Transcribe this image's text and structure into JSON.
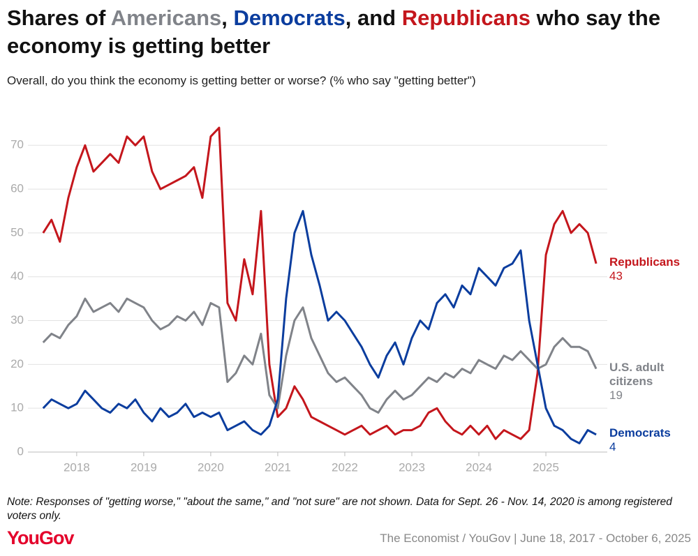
{
  "title": [
    {
      "text": "Shares of "
    },
    {
      "text": "Americans",
      "color": "#808389"
    },
    {
      "text": ", "
    },
    {
      "text": "Democrats",
      "color": "#0b3d9e"
    },
    {
      "text": ", and "
    },
    {
      "text": "Republicans",
      "color": "#c4161c"
    },
    {
      "text": " who say the economy is getting better"
    }
  ],
  "chart_data": {
    "type": "line",
    "subtitle": "Overall, do you think the economy is getting better or worse? (% who say \"getting better\")",
    "x": [
      2017.5,
      2017.625,
      2017.75,
      2017.875,
      2018,
      2018.125,
      2018.25,
      2018.375,
      2018.5,
      2018.625,
      2018.75,
      2018.875,
      2019,
      2019.125,
      2019.25,
      2019.375,
      2019.5,
      2019.625,
      2019.75,
      2019.875,
      2020,
      2020.125,
      2020.25,
      2020.375,
      2020.5,
      2020.625,
      2020.75,
      2020.875,
      2021,
      2021.125,
      2021.25,
      2021.375,
      2021.5,
      2021.625,
      2021.75,
      2021.875,
      2022,
      2022.125,
      2022.25,
      2022.375,
      2022.5,
      2022.625,
      2022.75,
      2022.875,
      2023,
      2023.125,
      2023.25,
      2023.375,
      2023.5,
      2023.625,
      2023.75,
      2023.875,
      2024,
      2024.125,
      2024.25,
      2024.375,
      2024.5,
      2024.625,
      2024.75,
      2024.875,
      2025,
      2025.125,
      2025.25,
      2025.375,
      2025.5,
      2025.625,
      2025.75
    ],
    "xlim": [
      2017.46,
      2025.77
    ],
    "xticks": [
      2018,
      2019,
      2020,
      2021,
      2022,
      2023,
      2024,
      2025
    ],
    "ylim": [
      0,
      78
    ],
    "yticks": [
      0,
      10,
      20,
      30,
      40,
      50,
      60,
      70
    ],
    "grid": true,
    "series": [
      {
        "name": "Republicans",
        "color": "#c4161c",
        "values": [
          50,
          53,
          48,
          58,
          65,
          70,
          64,
          66,
          68,
          66,
          72,
          70,
          72,
          64,
          60,
          61,
          62,
          63,
          65,
          58,
          72,
          74,
          34,
          30,
          44,
          36,
          55,
          20,
          8,
          10,
          15,
          12,
          8,
          7,
          6,
          5,
          4,
          5,
          6,
          4,
          5,
          6,
          4,
          5,
          5,
          6,
          9,
          10,
          7,
          5,
          4,
          6,
          4,
          6,
          3,
          5,
          4,
          3,
          5,
          18,
          45,
          52,
          55,
          50,
          52,
          50,
          43
        ]
      },
      {
        "name": "U.S. adult citizens",
        "color": "#808389",
        "values": [
          25,
          27,
          26,
          29,
          31,
          35,
          32,
          33,
          34,
          32,
          35,
          34,
          33,
          30,
          28,
          29,
          31,
          30,
          32,
          29,
          34,
          33,
          16,
          18,
          22,
          20,
          27,
          13,
          10,
          22,
          30,
          33,
          26,
          22,
          18,
          16,
          17,
          15,
          13,
          10,
          9,
          12,
          14,
          12,
          13,
          15,
          17,
          16,
          18,
          17,
          19,
          18,
          21,
          20,
          19,
          22,
          21,
          23,
          21,
          19,
          20,
          24,
          26,
          24,
          24,
          23,
          19
        ]
      },
      {
        "name": "Democrats",
        "color": "#0b3d9e",
        "values": [
          10,
          12,
          11,
          10,
          11,
          14,
          12,
          10,
          9,
          11,
          10,
          12,
          9,
          7,
          10,
          8,
          9,
          11,
          8,
          9,
          8,
          9,
          5,
          6,
          7,
          5,
          4,
          6,
          12,
          35,
          50,
          55,
          45,
          38,
          30,
          32,
          30,
          27,
          24,
          20,
          17,
          22,
          25,
          20,
          26,
          30,
          28,
          34,
          36,
          33,
          38,
          36,
          42,
          40,
          38,
          42,
          43,
          46,
          30,
          20,
          10,
          6,
          5,
          3,
          2,
          5,
          4
        ]
      }
    ],
    "note": "Note: Responses of \"getting worse,\" \"about the same,\" and \"not sure\" are not shown. Data for Sept. 26 - Nov. 14, 2020 is among registered voters only.",
    "brand": "YouGov",
    "source": "The Economist / YouGov | June 18, 2017 - October 6, 2025"
  }
}
